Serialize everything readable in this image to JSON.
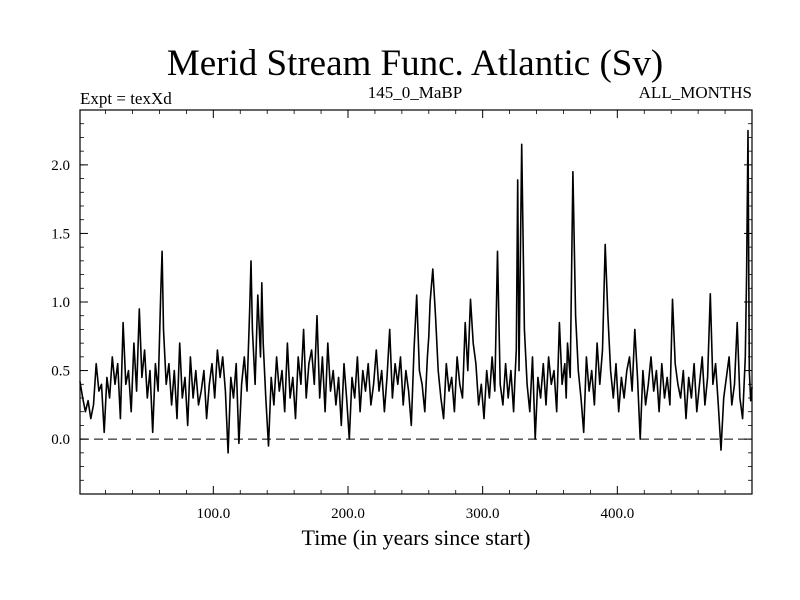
{
  "chart_data": {
    "type": "line",
    "title": "Merid Stream Func. Atlantic (Sv)",
    "subtitle_left": "Expt = texXd",
    "subtitle_center": "145_0_MaBP",
    "subtitle_right": "ALL_MONTHS",
    "xlabel": "Time (in years since start)",
    "ylabel": "",
    "xlim": [
      1,
      500
    ],
    "ylim": [
      -0.4,
      2.4
    ],
    "xticks": [
      100,
      200,
      300,
      400
    ],
    "xtick_labels": [
      "100.0",
      "200.0",
      "300.0",
      "400.0"
    ],
    "yticks": [
      0.0,
      0.5,
      1.0,
      1.5,
      2.0
    ],
    "ytick_labels": [
      "0.0",
      "0.5",
      "1.0",
      "1.5",
      "2.0"
    ],
    "reference_line": {
      "y": 0.0,
      "style": "dashed"
    },
    "grid": false,
    "series": [
      {
        "x": [
          1,
          3,
          5,
          7,
          9,
          11,
          13,
          15,
          17,
          19,
          21,
          23,
          25,
          27,
          29,
          31,
          33,
          35,
          37,
          39,
          41,
          43,
          45,
          47,
          49,
          51,
          53,
          55,
          57,
          59,
          61,
          62,
          63,
          65,
          67,
          69,
          71,
          73,
          75,
          77,
          79,
          81,
          83,
          85,
          87,
          89,
          91,
          93,
          95,
          97,
          99,
          101,
          103,
          105,
          107,
          109,
          111,
          113,
          115,
          117,
          119,
          121,
          123,
          125,
          127,
          128,
          129,
          131,
          133,
          135,
          136,
          137,
          139,
          141,
          143,
          145,
          147,
          149,
          151,
          153,
          155,
          157,
          159,
          161,
          163,
          165,
          167,
          169,
          171,
          173,
          175,
          177,
          179,
          181,
          183,
          185,
          187,
          189,
          191,
          193,
          195,
          197,
          199,
          201,
          203,
          205,
          207,
          209,
          211,
          213,
          215,
          217,
          219,
          221,
          223,
          225,
          227,
          229,
          231,
          233,
          235,
          237,
          239,
          241,
          243,
          245,
          247,
          249,
          251,
          253,
          255,
          257,
          259,
          260,
          261,
          263,
          265,
          267,
          269,
          271,
          273,
          275,
          277,
          279,
          281,
          283,
          285,
          287,
          289,
          291,
          293,
          295,
          297,
          299,
          301,
          303,
          305,
          307,
          309,
          311,
          313,
          315,
          317,
          319,
          321,
          323,
          324,
          325,
          326,
          327,
          329,
          331,
          333,
          335,
          337,
          339,
          341,
          343,
          345,
          347,
          349,
          351,
          353,
          355,
          357,
          359,
          361,
          362,
          363,
          365,
          367,
          369,
          371,
          373,
          375,
          377,
          379,
          381,
          383,
          385,
          387,
          389,
          391,
          393,
          395,
          397,
          399,
          401,
          403,
          405,
          407,
          409,
          411,
          413,
          415,
          417,
          419,
          421,
          423,
          425,
          427,
          429,
          431,
          433,
          435,
          437,
          439,
          441,
          443,
          445,
          447,
          449,
          451,
          453,
          455,
          457,
          459,
          461,
          463,
          465,
          467,
          469,
          471,
          473,
          475,
          477,
          479,
          481,
          483,
          485,
          487,
          489,
          491,
          493,
          495,
          496,
          497,
          498,
          499,
          500
        ],
        "y": [
          0.42,
          0.3,
          0.2,
          0.28,
          0.15,
          0.25,
          0.55,
          0.35,
          0.4,
          0.05,
          0.45,
          0.3,
          0.6,
          0.4,
          0.55,
          0.15,
          0.85,
          0.4,
          0.5,
          0.2,
          0.7,
          0.35,
          0.95,
          0.45,
          0.65,
          0.3,
          0.5,
          0.05,
          0.55,
          0.35,
          1.08,
          1.37,
          0.8,
          0.4,
          0.55,
          0.25,
          0.5,
          0.15,
          0.7,
          0.3,
          0.45,
          0.1,
          0.6,
          0.3,
          0.5,
          0.25,
          0.35,
          0.5,
          0.15,
          0.4,
          0.55,
          0.3,
          0.65,
          0.45,
          0.6,
          0.35,
          -0.1,
          0.45,
          0.3,
          0.55,
          -0.03,
          0.4,
          0.6,
          0.35,
          0.95,
          1.3,
          0.8,
          0.4,
          1.05,
          0.6,
          1.14,
          0.7,
          0.3,
          -0.05,
          0.45,
          0.25,
          0.6,
          0.35,
          0.5,
          0.2,
          0.7,
          0.3,
          0.45,
          0.15,
          0.6,
          0.4,
          0.8,
          0.3,
          0.55,
          0.65,
          0.4,
          0.9,
          0.3,
          0.6,
          0.2,
          0.7,
          0.35,
          0.5,
          0.25,
          0.45,
          0.1,
          0.55,
          0.3,
          0.0,
          0.45,
          0.3,
          0.6,
          0.2,
          0.5,
          0.35,
          0.55,
          0.25,
          0.4,
          0.65,
          0.35,
          0.5,
          0.2,
          0.45,
          0.8,
          0.3,
          0.55,
          0.4,
          0.6,
          0.25,
          0.5,
          0.35,
          0.1,
          0.65,
          1.05,
          0.5,
          0.4,
          0.2,
          0.6,
          0.75,
          1.0,
          1.24,
          0.9,
          0.5,
          0.3,
          0.15,
          0.55,
          0.35,
          0.45,
          0.2,
          0.6,
          0.4,
          0.3,
          0.85,
          0.5,
          1.02,
          0.7,
          0.55,
          0.25,
          0.4,
          0.15,
          0.5,
          0.3,
          0.6,
          0.35,
          1.37,
          0.4,
          0.25,
          0.55,
          0.3,
          0.5,
          0.2,
          0.45,
          0.65,
          1.89,
          0.5,
          2.15,
          0.8,
          0.4,
          0.2,
          0.6,
          0.0,
          0.45,
          0.3,
          0.55,
          0.25,
          0.6,
          0.4,
          0.5,
          0.2,
          0.85,
          0.4,
          0.55,
          0.3,
          0.7,
          0.45,
          1.95,
          0.9,
          0.5,
          0.3,
          0.05,
          0.6,
          0.35,
          0.5,
          0.25,
          0.7,
          0.4,
          0.65,
          1.42,
          0.9,
          0.5,
          0.3,
          0.55,
          0.2,
          0.45,
          0.3,
          0.5,
          0.6,
          0.35,
          0.8,
          0.45,
          0.0,
          0.5,
          0.25,
          0.4,
          0.6,
          0.35,
          0.5,
          0.2,
          0.55,
          0.3,
          0.45,
          0.25,
          1.02,
          0.55,
          0.4,
          0.3,
          0.5,
          0.15,
          0.45,
          0.3,
          0.55,
          0.2,
          0.4,
          0.6,
          0.25,
          0.45,
          1.06,
          0.4,
          0.55,
          0.25,
          -0.08,
          0.3,
          0.45,
          0.6,
          0.25,
          0.4,
          0.85,
          0.3,
          0.15,
          0.6,
          1.2,
          2.25,
          0.5,
          0.28,
          0.38
        ]
      }
    ]
  }
}
